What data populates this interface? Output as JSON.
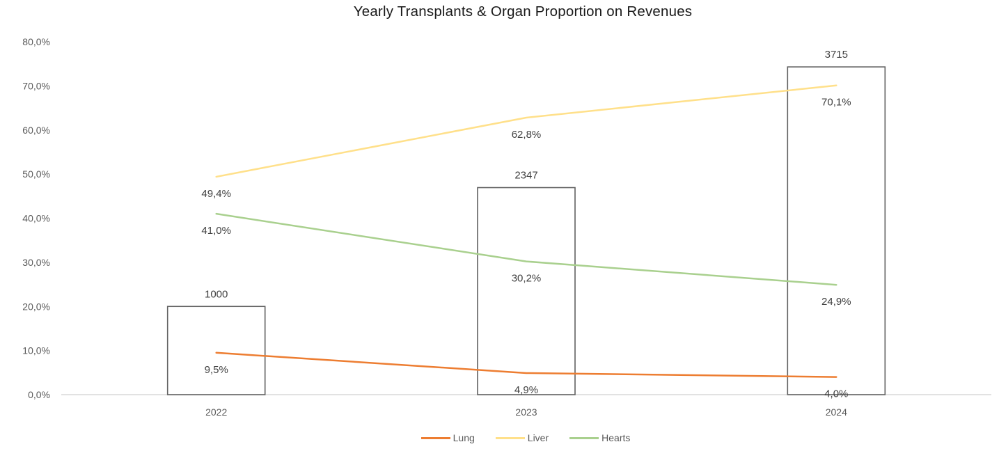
{
  "title": "Yearly Transplants & Organ Proportion on Revenues",
  "chart_data": {
    "type": "combo-bar-line",
    "categories": [
      "2022",
      "2023",
      "2024"
    ],
    "bar_series": {
      "name": "Transplants",
      "values": [
        1000,
        2347,
        3715
      ],
      "labels": [
        "1000",
        "2347",
        "3715"
      ],
      "secondary_axis_max": 4000,
      "fill": "#FFFFFF",
      "border_color": "#616161"
    },
    "line_series": [
      {
        "name": "Lung",
        "color": "#ED7D31",
        "values": [
          9.5,
          4.9,
          4.0
        ],
        "labels": [
          "9,5%",
          "4,9%",
          "4,0%"
        ]
      },
      {
        "name": "Liver",
        "color": "#FFE08A",
        "values": [
          49.4,
          62.8,
          70.1
        ],
        "labels": [
          "49,4%",
          "62,8%",
          "70,1%"
        ]
      },
      {
        "name": "Hearts",
        "color": "#A9D08E",
        "values": [
          41.0,
          30.2,
          24.9
        ],
        "labels": [
          "41,0%",
          "30,2%",
          "24,9%"
        ]
      }
    ],
    "y_axis": {
      "min": 0,
      "max": 80,
      "tick_step": 10,
      "tick_labels": [
        "80,0%",
        "70,0%",
        "60,0%",
        "50,0%",
        "40,0%",
        "30,0%",
        "20,0%",
        "10,0%",
        "0,0%"
      ]
    },
    "grid": false,
    "legend_position": "bottom",
    "legend_entries": [
      "Lung",
      "Liver",
      "Hearts"
    ],
    "colors": {
      "axis_line": "#D9D9D9",
      "tick_text": "#595959",
      "category_text": "#595959",
      "data_label_text": "#404040",
      "title_text": "#1a1a1a"
    }
  }
}
